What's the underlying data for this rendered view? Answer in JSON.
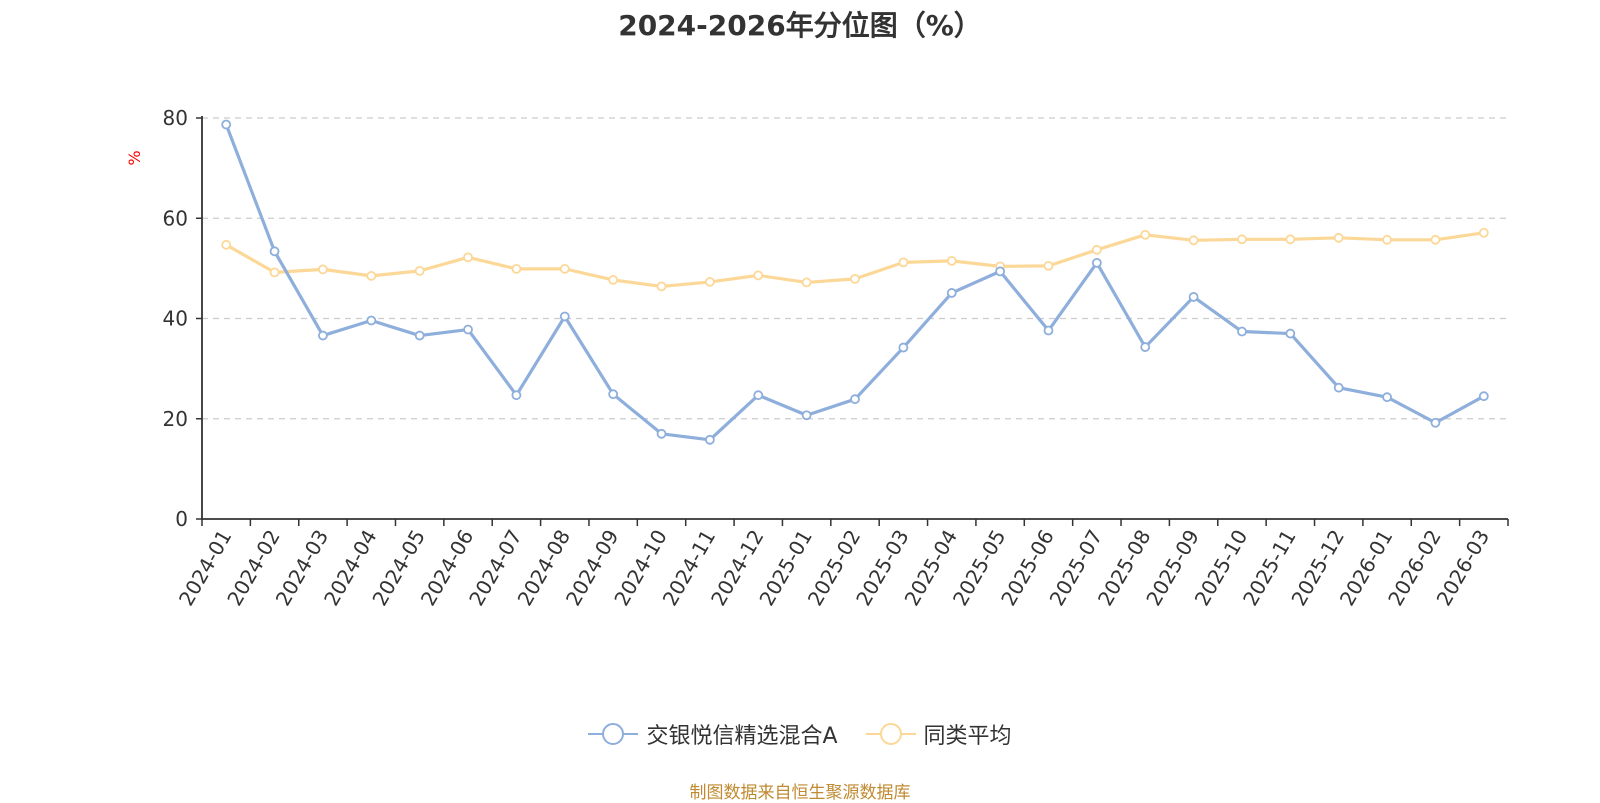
{
  "chart_data": {
    "type": "line",
    "title": "2024-2026年分位图（%）",
    "xlabel": "",
    "ylabel": "%",
    "ylim": [
      0,
      80
    ],
    "yticks": [
      0,
      20,
      40,
      60,
      80
    ],
    "grid": "horizontal dashed",
    "legend_position": "bottom-center",
    "categories": [
      "2024-01",
      "2024-02",
      "2024-03",
      "2024-04",
      "2024-05",
      "2024-06",
      "2024-07",
      "2024-08",
      "2024-09",
      "2024-10",
      "2024-11",
      "2024-12",
      "2025-01",
      "2025-02",
      "2025-03",
      "2025-04",
      "2025-05",
      "2025-06",
      "2025-07",
      "2025-08",
      "2025-09",
      "2025-10",
      "2025-11",
      "2025-12",
      "2026-01",
      "2026-02",
      "2026-03"
    ],
    "series": [
      {
        "name": "交银悦信精选混合A",
        "color": "#8eaedc",
        "values": [
          78.7,
          53.4,
          36.6,
          39.6,
          36.6,
          37.8,
          24.7,
          40.4,
          24.9,
          17.0,
          15.8,
          24.7,
          20.7,
          23.9,
          34.2,
          45.1,
          49.4,
          37.6,
          51.1,
          34.3,
          44.3,
          37.4,
          37.0,
          26.2,
          24.3,
          19.2,
          24.5
        ]
      },
      {
        "name": "同类平均",
        "color": "#fcd898",
        "values": [
          54.7,
          49.2,
          49.8,
          48.5,
          49.5,
          52.2,
          49.9,
          49.9,
          47.7,
          46.4,
          47.3,
          48.6,
          47.2,
          47.9,
          51.2,
          51.5,
          50.4,
          50.5,
          53.7,
          56.7,
          55.6,
          55.8,
          55.8,
          56.1,
          55.7,
          55.7,
          57.1
        ]
      }
    ]
  },
  "source_text": "制图数据来自恒生聚源数据库",
  "colors": {
    "ylabel": "#ff0000",
    "source": "#c08a30",
    "grid": "#cccccc",
    "axis": "#333333"
  }
}
